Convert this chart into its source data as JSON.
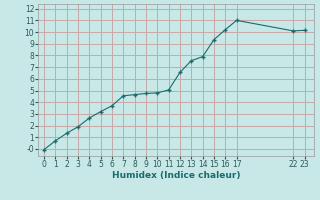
{
  "x_vals": [
    0,
    1,
    2,
    3,
    4,
    5,
    6,
    7,
    8,
    9,
    10,
    11,
    12,
    13,
    14,
    15,
    16,
    17,
    22,
    23
  ],
  "y_vals": [
    -0.05,
    0.7,
    1.35,
    1.9,
    2.65,
    3.2,
    3.7,
    4.55,
    4.65,
    4.75,
    4.8,
    5.05,
    6.55,
    7.55,
    7.9,
    9.35,
    10.2,
    11.0,
    10.1,
    10.15
  ],
  "xlabel": "Humidex (Indice chaleur)",
  "bg_color": "#c8e8e8",
  "grid_color": "#c8a8a8",
  "line_color": "#1a6b6b",
  "marker_color": "#1a6b6b",
  "ylim": [
    -0.6,
    12.4
  ],
  "xlim": [
    -0.5,
    23.8
  ],
  "yticks": [
    0,
    1,
    2,
    3,
    4,
    5,
    6,
    7,
    8,
    9,
    10,
    11,
    12
  ],
  "xticks": [
    0,
    1,
    2,
    3,
    4,
    5,
    6,
    7,
    8,
    9,
    10,
    11,
    12,
    13,
    14,
    15,
    16,
    17,
    22,
    23
  ],
  "xlabel_fontsize": 6.5,
  "tick_fontsize": 5.5,
  "figsize": [
    3.2,
    2.0
  ],
  "dpi": 100
}
